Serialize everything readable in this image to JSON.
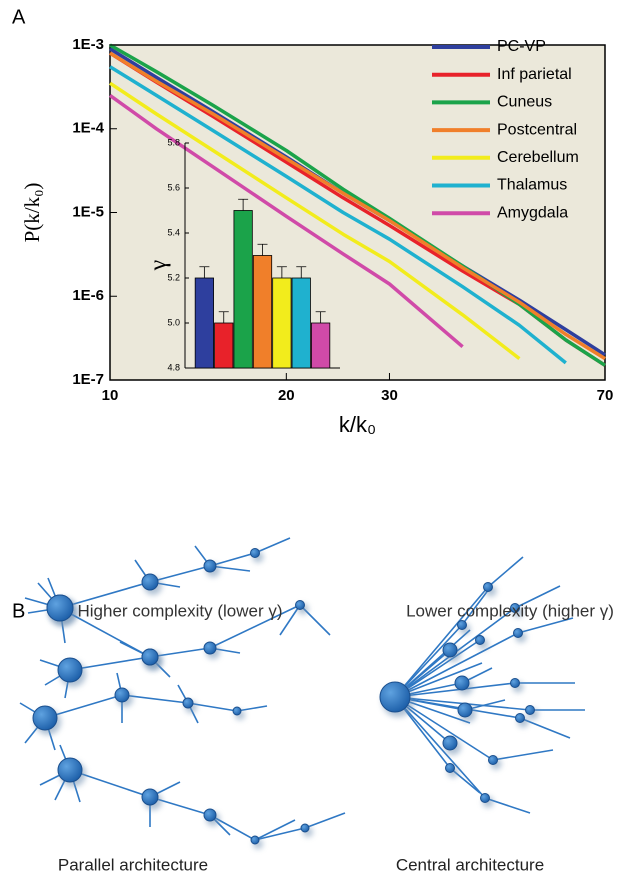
{
  "panel_labels": [
    "A",
    "B"
  ],
  "chart_data": [
    {
      "type": "line",
      "xscale": "log",
      "yscale": "log",
      "xlabel": "k/k₀",
      "ylabel": "P(k/k₀)",
      "x": [
        10,
        12,
        15,
        20,
        25,
        30,
        40,
        50,
        60,
        70
      ],
      "xlim": [
        10,
        70
      ],
      "xticks": [
        10,
        20,
        30,
        70
      ],
      "ylim": [
        1e-07,
        0.001
      ],
      "yticks": [
        {
          "value": 1e-07,
          "label": "1E-7"
        },
        {
          "value": 1e-06,
          "label": "1E-6"
        },
        {
          "value": 1e-05,
          "label": "1E-5"
        },
        {
          "value": 0.0001,
          "label": "1E-4"
        },
        {
          "value": 0.001,
          "label": "1E-3"
        }
      ],
      "grid": false,
      "legend": "upper right",
      "series": [
        {
          "name": "PC-VP",
          "color": "#2e3f9e",
          "values": [
            0.0009,
            0.00041,
            0.00016,
            4.6e-05,
            1.7e-05,
            8e-06,
            2.3e-06,
            9e-07,
            4e-07,
            2e-07
          ]
        },
        {
          "name": "Inf parietal",
          "color": "#e8222a",
          "values": [
            0.0008,
            0.00036,
            0.00014,
            4e-05,
            1.5e-05,
            7e-06,
            2e-06,
            8e-07,
            3e-07,
            1.5e-07
          ]
        },
        {
          "name": "Cuneus",
          "color": "#1ba34a",
          "values": [
            0.001,
            0.00048,
            0.00019,
            5.5e-05,
            1.9e-05,
            8.5e-06,
            2.3e-06,
            8e-07,
            3e-07,
            1.5e-07
          ]
        },
        {
          "name": "Postcentral",
          "color": "#f07f2a",
          "values": [
            0.0008,
            0.00037,
            0.00015,
            4.4e-05,
            1.7e-05,
            8e-06,
            2.2e-06,
            8.5e-07,
            3.5e-07,
            1.8e-07
          ]
        },
        {
          "name": "Cerebellum",
          "color": "#f2ec1c",
          "values": [
            0.00035,
            0.00015,
            5.5e-05,
            1.5e-05,
            5.5e-06,
            2.6e-06,
            6e-07,
            1.8e-07,
            null,
            null
          ]
        },
        {
          "name": "Thalamus",
          "color": "#1fb1cf",
          "values": [
            0.00055,
            0.00025,
            9.5e-05,
            2.7e-05,
            1e-05,
            4.8e-06,
            1.3e-06,
            4.5e-07,
            1.6e-07,
            null
          ]
        },
        {
          "name": "Amygdala",
          "color": "#d04aa8",
          "values": [
            0.00025,
            0.0001,
            3.5e-05,
            9e-06,
            3.2e-06,
            1.4e-06,
            2.5e-07,
            null,
            null,
            null
          ]
        }
      ]
    },
    {
      "type": "bar",
      "ylabel": "γ",
      "categories": [
        null,
        null,
        null,
        null,
        null,
        null,
        null
      ],
      "values": [
        5.2,
        5.0,
        5.5,
        5.3,
        5.2,
        5.2,
        5.0
      ],
      "errors": [
        0.05,
        0.05,
        0.05,
        0.05,
        0.05,
        0.05,
        0.05
      ],
      "colors": [
        "#2e3f9e",
        "#e8222a",
        "#1ba34a",
        "#f07f2a",
        "#f2ec1c",
        "#1fb1cf",
        "#d04aa8"
      ],
      "ylim": [
        4.8,
        5.8
      ],
      "yticks": [
        4.8,
        {
          "value": 5,
          "label": "5.0"
        },
        5.2,
        5.4,
        5.6,
        5.8
      ]
    }
  ],
  "diagram": {
    "left_title": "Higher complexity (lower γ)",
    "right_title": "Lower complexity (higher γ)",
    "left_caption": "Parallel architecture",
    "right_caption": "Central architecture"
  }
}
